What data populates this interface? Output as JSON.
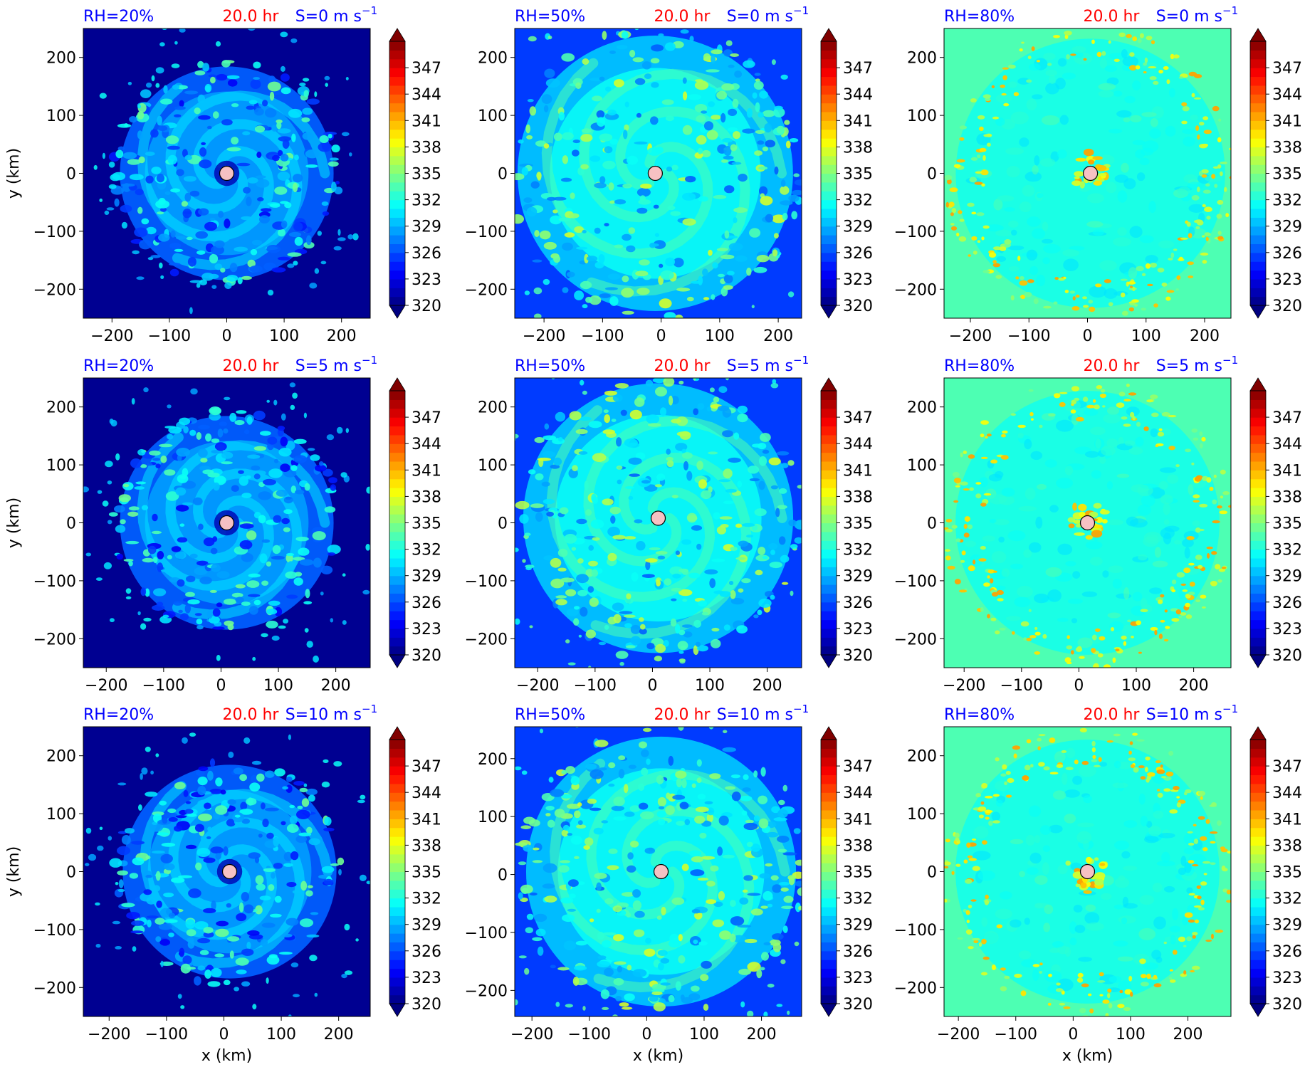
{
  "figure": {
    "colormap": "jet",
    "marker_color": "#f6c1c3",
    "title_blue": "#0000ff",
    "title_red": "#ff0000"
  },
  "chart_data": [
    {
      "type": "heatmap",
      "variable": "theta_e",
      "rh_label": "RH=20%",
      "time_label": "20.0 hr",
      "shear_label": "S=0 m s",
      "shear_exp": "−1",
      "rh": 20,
      "shear": 0,
      "xlim": [
        -250,
        250
      ],
      "ylim": [
        -250,
        250
      ],
      "xticks": [
        -200,
        -100,
        0,
        100,
        200
      ],
      "yticks": [
        -200,
        -100,
        0,
        100,
        200
      ],
      "xlabel": "",
      "ylabel": "y (km)",
      "center": [
        0,
        0
      ],
      "background_k": 320.5,
      "field_k": 328,
      "spot_k": 333.5,
      "spiral_radius_km": [
        20,
        190
      ],
      "colorbar": {
        "ticks": [
          320,
          323,
          326,
          329,
          332,
          335,
          338,
          341,
          344,
          347
        ],
        "min": 320,
        "max": 350,
        "extend": "both"
      }
    },
    {
      "type": "heatmap",
      "variable": "theta_e",
      "rh_label": "RH=50%",
      "time_label": "20.0 hr",
      "shear_label": "S=0 m s",
      "shear_exp": "−1",
      "rh": 50,
      "shear": 0,
      "xlim": [
        -250,
        240
      ],
      "ylim": [
        -250,
        250
      ],
      "xticks": [
        -200,
        -100,
        0,
        100,
        200
      ],
      "yticks": [
        -200,
        -100,
        0,
        100,
        200
      ],
      "xlabel": "",
      "ylabel": "",
      "center": [
        -10,
        0
      ],
      "background_k": 325.5,
      "field_k": 331,
      "spot_k": 336.5,
      "spiral_radius_km": [
        20,
        240
      ],
      "colorbar": {
        "ticks": [
          320,
          323,
          326,
          329,
          332,
          335,
          338,
          341,
          344,
          347
        ],
        "min": 320,
        "max": 350,
        "extend": "both"
      }
    },
    {
      "type": "heatmap",
      "variable": "theta_e",
      "rh_label": "RH=80%",
      "time_label": "20.0 hr",
      "shear_label": "S=0 m s",
      "shear_exp": "−1",
      "rh": 80,
      "shear": 0,
      "xlim": [
        -245,
        245
      ],
      "ylim": [
        -250,
        250
      ],
      "xticks": [
        -200,
        -100,
        0,
        100,
        200
      ],
      "yticks": [
        -200,
        -100,
        0,
        100,
        200
      ],
      "xlabel": "",
      "ylabel": "",
      "center": [
        5,
        0
      ],
      "background_k": 333.3,
      "field_k": 331.8,
      "spot_k": 342,
      "spiral_radius_km": [
        180,
        250
      ],
      "colorbar": {
        "ticks": [
          320,
          323,
          326,
          329,
          332,
          335,
          338,
          341,
          344,
          347
        ],
        "min": 320,
        "max": 350,
        "extend": "both"
      }
    },
    {
      "type": "heatmap",
      "variable": "theta_e",
      "rh_label": "RH=20%",
      "time_label": "20.0 hr",
      "shear_label": "S=5 m s",
      "shear_exp": "−1",
      "rh": 20,
      "shear": 5,
      "xlim": [
        -240,
        260
      ],
      "ylim": [
        -250,
        250
      ],
      "xticks": [
        -200,
        -100,
        0,
        100,
        200
      ],
      "yticks": [
        -200,
        -100,
        0,
        100,
        200
      ],
      "xlabel": "",
      "ylabel": "y (km)",
      "center": [
        10,
        0
      ],
      "background_k": 320.5,
      "field_k": 328,
      "spot_k": 333.5,
      "spiral_radius_km": [
        20,
        190
      ],
      "colorbar": {
        "ticks": [
          320,
          323,
          326,
          329,
          332,
          335,
          338,
          341,
          344,
          347
        ],
        "min": 320,
        "max": 350,
        "extend": "both"
      }
    },
    {
      "type": "heatmap",
      "variable": "theta_e",
      "rh_label": "RH=50%",
      "time_label": "20.0 hr",
      "shear_label": "S=5 m s",
      "shear_exp": "−1",
      "rh": 50,
      "shear": 5,
      "xlim": [
        -240,
        260
      ],
      "ylim": [
        -250,
        250
      ],
      "xticks": [
        -200,
        -100,
        0,
        100,
        200
      ],
      "yticks": [
        -200,
        -100,
        0,
        100,
        200
      ],
      "xlabel": "",
      "ylabel": "",
      "center": [
        10,
        8
      ],
      "background_k": 325.5,
      "field_k": 331,
      "spot_k": 336.5,
      "spiral_radius_km": [
        20,
        240
      ],
      "colorbar": {
        "ticks": [
          320,
          323,
          326,
          329,
          332,
          335,
          338,
          341,
          344,
          347
        ],
        "min": 320,
        "max": 350,
        "extend": "both"
      }
    },
    {
      "type": "heatmap",
      "variable": "theta_e",
      "rh_label": "RH=80%",
      "time_label": "20.0 hr",
      "shear_label": "S=5 m s",
      "shear_exp": "−1",
      "rh": 80,
      "shear": 5,
      "xlim": [
        -235,
        265
      ],
      "ylim": [
        -250,
        250
      ],
      "xticks": [
        -200,
        -100,
        0,
        100,
        200
      ],
      "yticks": [
        -200,
        -100,
        0,
        100,
        200
      ],
      "xlabel": "",
      "ylabel": "",
      "center": [
        15,
        0
      ],
      "background_k": 333.3,
      "field_k": 331.8,
      "spot_k": 342,
      "spiral_radius_km": [
        180,
        250
      ],
      "colorbar": {
        "ticks": [
          320,
          323,
          326,
          329,
          332,
          335,
          338,
          341,
          344,
          347
        ],
        "min": 320,
        "max": 350,
        "extend": "both"
      }
    },
    {
      "type": "heatmap",
      "variable": "theta_e",
      "rh_label": "RH=20%",
      "time_label": "20.0 hr",
      "shear_label": "S=10 m s",
      "shear_exp": "−1",
      "rh": 20,
      "shear": 10,
      "xlim": [
        -245,
        255
      ],
      "ylim": [
        -250,
        250
      ],
      "xticks": [
        -200,
        -100,
        0,
        100,
        200
      ],
      "yticks": [
        -200,
        -100,
        0,
        100,
        200
      ],
      "xlabel": "x (km)",
      "ylabel": "y (km)",
      "center": [
        10,
        0
      ],
      "background_k": 320.5,
      "field_k": 328,
      "spot_k": 333.5,
      "spiral_radius_km": [
        20,
        190
      ],
      "colorbar": {
        "ticks": [
          320,
          323,
          326,
          329,
          332,
          335,
          338,
          341,
          344,
          347
        ],
        "min": 320,
        "max": 350,
        "extend": "both"
      }
    },
    {
      "type": "heatmap",
      "variable": "theta_e",
      "rh_label": "RH=50%",
      "time_label": "20.0 hr",
      "shear_label": "S=10 m s",
      "shear_exp": "−1",
      "rh": 50,
      "shear": 10,
      "xlim": [
        -230,
        270
      ],
      "ylim": [
        -245,
        255
      ],
      "xticks": [
        -200,
        -100,
        0,
        100,
        200
      ],
      "yticks": [
        -200,
        -100,
        0,
        100,
        200
      ],
      "xlabel": "x (km)",
      "ylabel": "",
      "center": [
        25,
        5
      ],
      "background_k": 325.5,
      "field_k": 331,
      "spot_k": 336.5,
      "spiral_radius_km": [
        20,
        240
      ],
      "colorbar": {
        "ticks": [
          320,
          323,
          326,
          329,
          332,
          335,
          338,
          341,
          344,
          347
        ],
        "min": 320,
        "max": 350,
        "extend": "both"
      }
    },
    {
      "type": "heatmap",
      "variable": "theta_e",
      "rh_label": "RH=80%",
      "time_label": "20.0 hr",
      "shear_label": "S=10 m s",
      "shear_exp": "−1",
      "rh": 80,
      "shear": 10,
      "xlim": [
        -225,
        275
      ],
      "ylim": [
        -250,
        250
      ],
      "xticks": [
        -200,
        -100,
        0,
        100,
        200
      ],
      "yticks": [
        -200,
        -100,
        0,
        100,
        200
      ],
      "xlabel": "x (km)",
      "ylabel": "",
      "center": [
        25,
        0
      ],
      "background_k": 333.3,
      "field_k": 331.8,
      "spot_k": 342,
      "spiral_radius_km": [
        180,
        250
      ],
      "colorbar": {
        "ticks": [
          320,
          323,
          326,
          329,
          332,
          335,
          338,
          341,
          344,
          347
        ],
        "min": 320,
        "max": 350,
        "extend": "both"
      }
    }
  ]
}
